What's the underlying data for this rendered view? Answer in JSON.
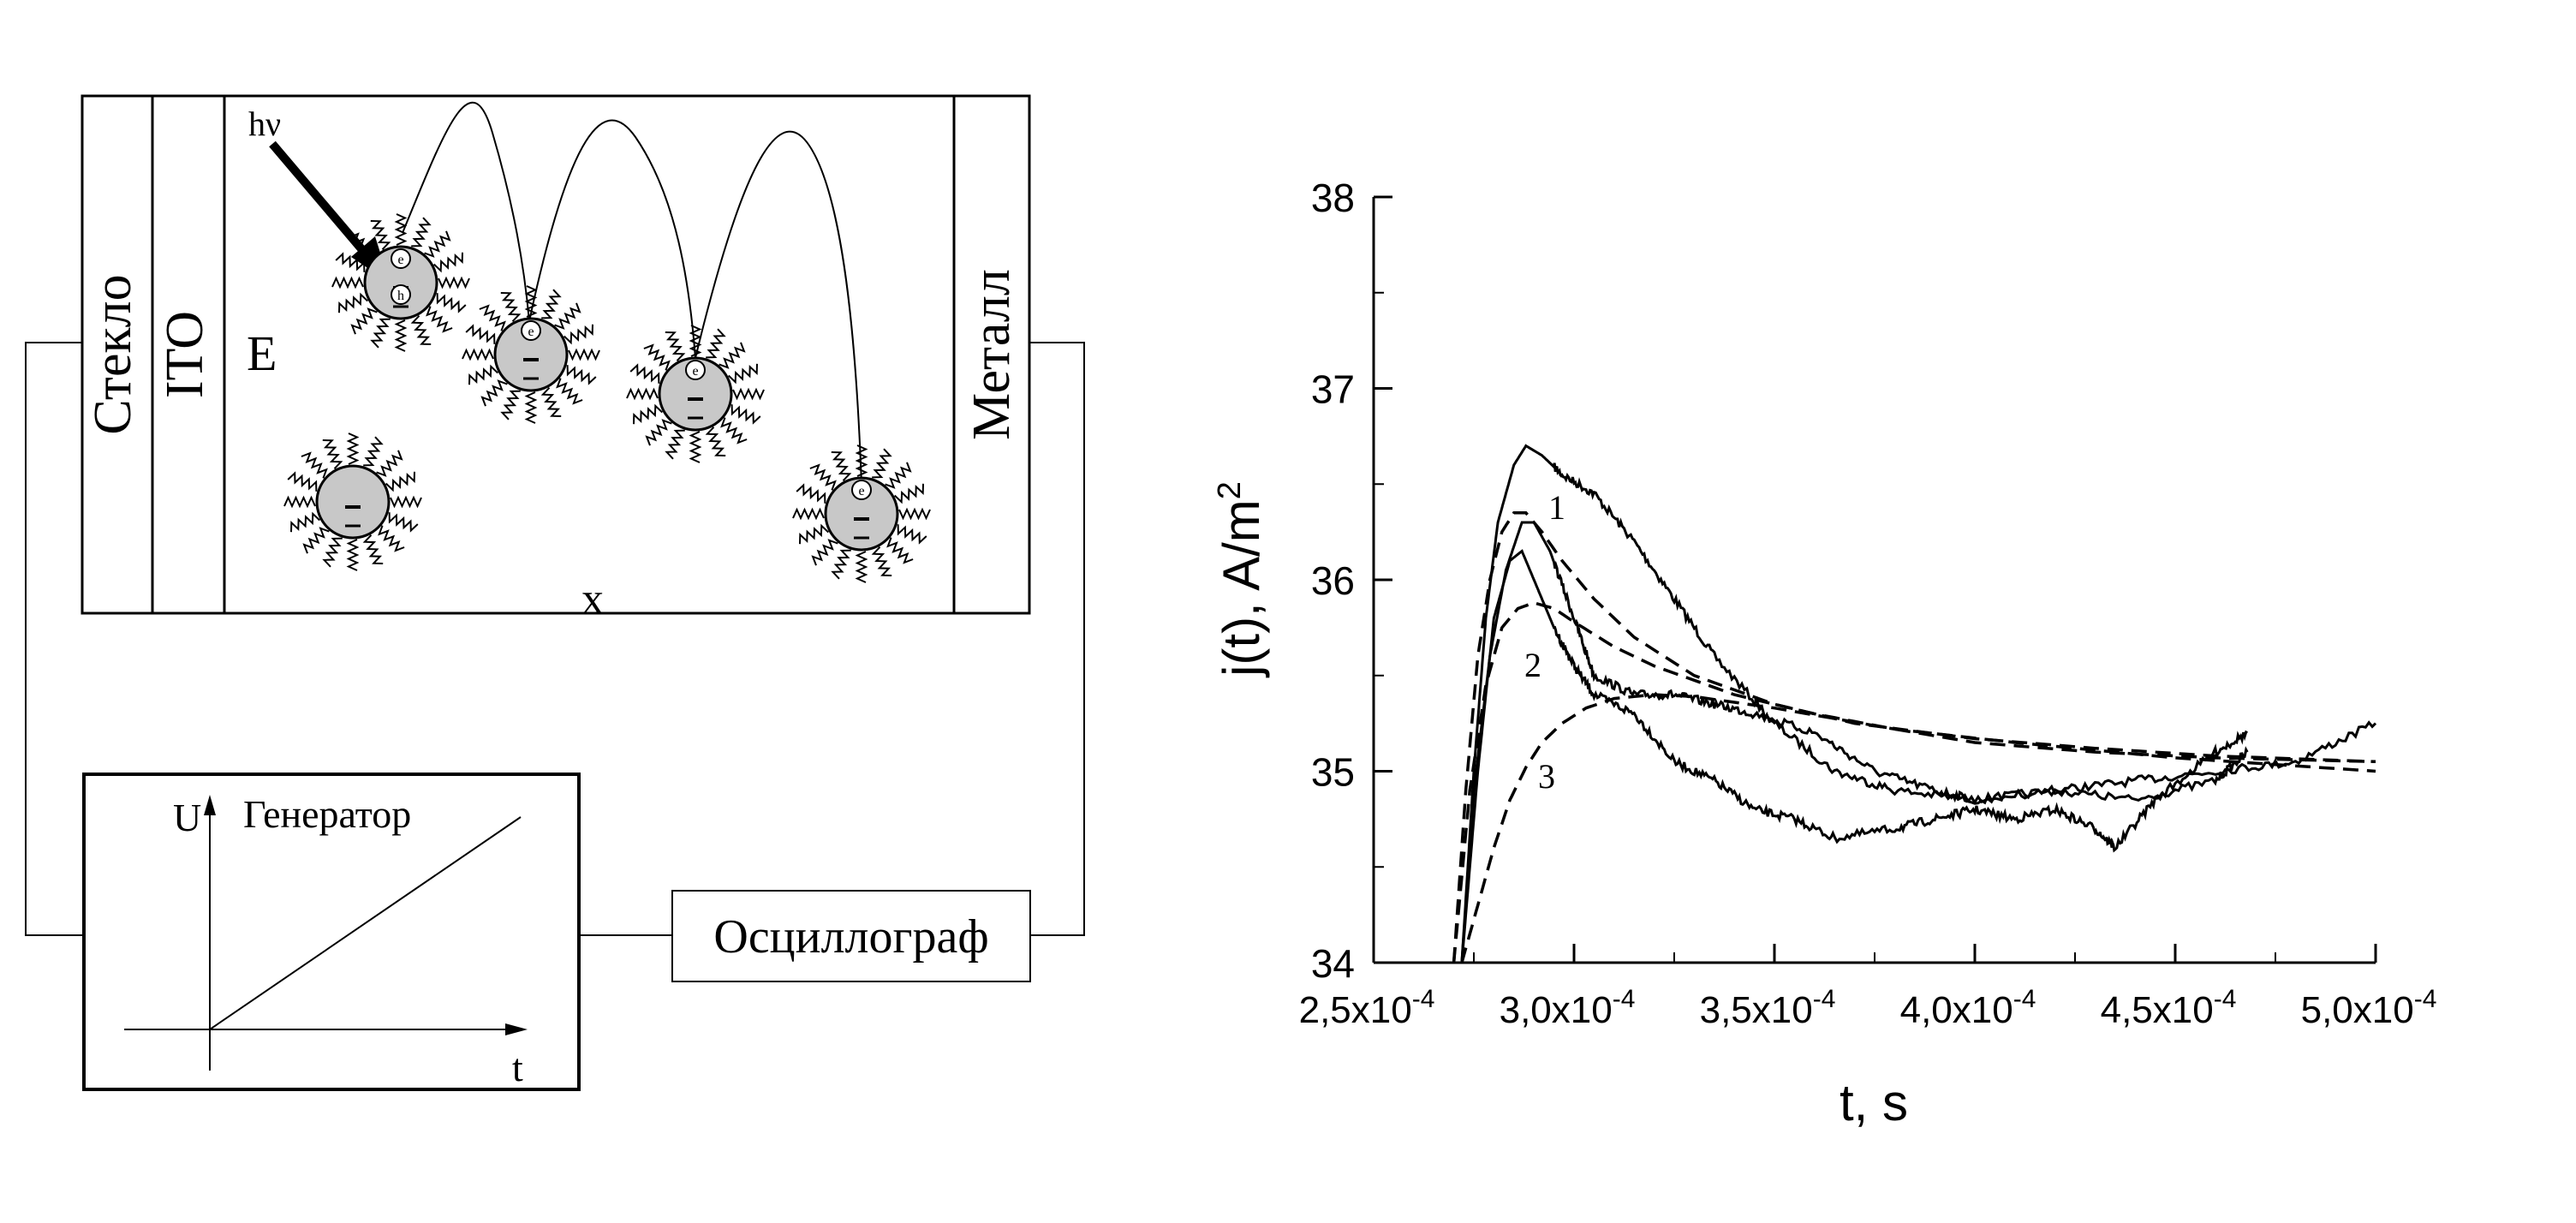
{
  "diagram": {
    "labels": {
      "glass": "Стекло",
      "ito": "ITO",
      "field": "E",
      "metal": "Металл",
      "photon": "hν",
      "coordinate": "x",
      "generator": "Генератор",
      "voltage_axis": "U",
      "time_axis": "t",
      "oscilloscope": "Осциллограф",
      "electron": "e",
      "hole": "h"
    }
  },
  "chart_data": {
    "type": "line",
    "xlabel": "t, s",
    "ylabel": "j(t), A/m",
    "ylabel_superscript": "2",
    "xlim": [
      0.00025,
      0.0005
    ],
    "ylim": [
      34,
      38
    ],
    "x_ticks": [
      {
        "mantissa": "2,5",
        "exp": "-4",
        "value": 0.00025
      },
      {
        "mantissa": "3,0",
        "exp": "-4",
        "value": 0.0003
      },
      {
        "mantissa": "3,5",
        "exp": "-4",
        "value": 0.00035
      },
      {
        "mantissa": "4,0",
        "exp": "-4",
        "value": 0.0004
      },
      {
        "mantissa": "4,5",
        "exp": "-4",
        "value": 0.00045
      },
      {
        "mantissa": "5,0",
        "exp": "-4",
        "value": 0.0005
      }
    ],
    "y_ticks": [
      "34",
      "35",
      "36",
      "37",
      "38"
    ],
    "grid": false,
    "annotations": [
      "1",
      "2",
      "3"
    ],
    "experimental": [
      {
        "x": [
          0.000272,
          0.000275,
          0.000278,
          0.000281,
          0.000285,
          0.000288,
          0.000292,
          0.000297,
          0.000305,
          0.000315,
          0.000325,
          0.000335,
          0.00035,
          0.000365,
          0.00038,
          0.0004,
          0.00042,
          0.00044,
          0.00046,
          0.00048,
          0.0005
        ],
        "y": [
          34.0,
          35.0,
          35.8,
          36.3,
          36.6,
          36.7,
          36.65,
          36.55,
          36.45,
          36.2,
          35.9,
          35.6,
          35.25,
          35.0,
          34.9,
          34.85,
          34.9,
          34.95,
          35.0,
          35.05,
          35.25
        ]
      },
      {
        "x": [
          0.000272,
          0.000275,
          0.000279,
          0.000283,
          0.000287,
          0.00029,
          0.000294,
          0.0003,
          0.000305,
          0.000315,
          0.000325,
          0.000335,
          0.000345,
          0.00036,
          0.000375,
          0.00039,
          0.0004,
          0.00042,
          0.00044,
          0.00046,
          0.000468
        ],
        "y": [
          34.0,
          34.9,
          35.6,
          36.05,
          36.3,
          36.3,
          36.15,
          35.8,
          35.5,
          35.4,
          35.4,
          35.35,
          35.3,
          35.2,
          35.0,
          34.9,
          34.85,
          34.9,
          34.85,
          34.95,
          35.1
        ]
      },
      {
        "x": [
          0.000272,
          0.000276,
          0.00028,
          0.000284,
          0.000287,
          0.00029,
          0.000295,
          0.0003,
          0.000305,
          0.000315,
          0.000325,
          0.000335,
          0.000345,
          0.000355,
          0.000365,
          0.00038,
          0.00039,
          0.0004,
          0.00041,
          0.00042,
          0.00043,
          0.000435,
          0.000445,
          0.00046,
          0.000468
        ],
        "y": [
          34.0,
          35.0,
          35.8,
          36.1,
          36.15,
          36.0,
          35.75,
          35.55,
          35.4,
          35.3,
          35.05,
          34.95,
          34.8,
          34.75,
          34.65,
          34.7,
          34.75,
          34.8,
          34.75,
          34.8,
          34.7,
          34.6,
          34.85,
          35.1,
          35.2
        ]
      }
    ],
    "fits": [
      {
        "x": [
          0.00027,
          0.000273,
          0.000276,
          0.000279,
          0.000282,
          0.000285,
          0.000288,
          0.000292,
          0.000297,
          0.000305,
          0.000315,
          0.00033,
          0.00035,
          0.00037,
          0.0004,
          0.00043,
          0.00046,
          0.0005
        ],
        "y": [
          34.0,
          34.9,
          35.6,
          36.0,
          36.25,
          36.35,
          36.35,
          36.25,
          36.1,
          35.9,
          35.7,
          35.5,
          35.35,
          35.25,
          35.17,
          35.12,
          35.08,
          35.05
        ]
      },
      {
        "x": [
          0.00027,
          0.000274,
          0.000278,
          0.000282,
          0.000286,
          0.00029,
          0.000295,
          0.0003,
          0.00031,
          0.00032,
          0.00034,
          0.00036,
          0.00038,
          0.0004,
          0.00043,
          0.00046,
          0.0005
        ],
        "y": [
          34.0,
          34.9,
          35.45,
          35.75,
          35.85,
          35.88,
          35.85,
          35.78,
          35.65,
          35.55,
          35.4,
          35.3,
          35.22,
          35.15,
          35.1,
          35.07,
          35.05
        ]
      },
      {
        "x": [
          0.000272,
          0.000276,
          0.00028,
          0.000284,
          0.000288,
          0.000292,
          0.000297,
          0.000303,
          0.00031,
          0.00032,
          0.00033,
          0.00035,
          0.00038,
          0.00041,
          0.00045,
          0.0005
        ],
        "y": [
          34.0,
          34.3,
          34.6,
          34.85,
          35.02,
          35.15,
          35.25,
          35.33,
          35.38,
          35.4,
          35.39,
          35.33,
          35.22,
          35.15,
          35.07,
          35.0
        ]
      }
    ]
  }
}
